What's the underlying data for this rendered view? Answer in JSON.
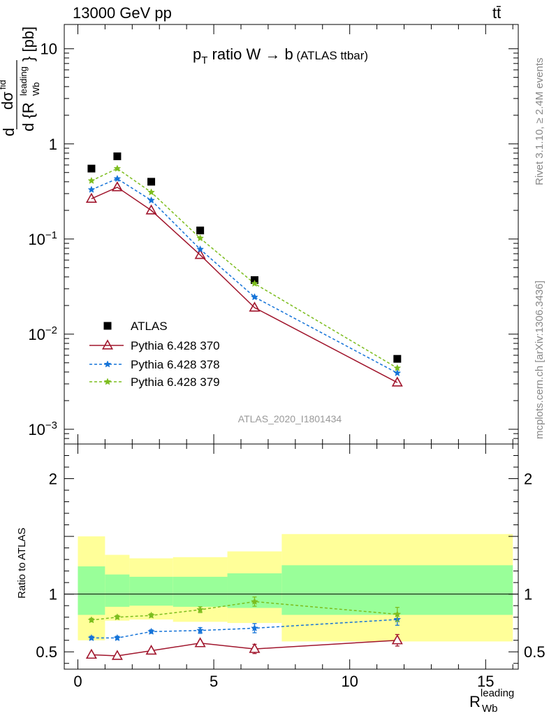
{
  "header": {
    "process": "13000 GeV pp",
    "final_state": "tt̄"
  },
  "side_labels": {
    "rivet": "Rivet 3.1.10, ≥ 2.4M events",
    "mcplots": "mcplots.cern.ch [arXiv:1306.3436]"
  },
  "colors": {
    "atlas": "#000000",
    "p370": "#a0152c",
    "p378": "#1473d8",
    "p379": "#7cbd1e",
    "band_inner": "#99ff99",
    "band_outer": "#ffff99"
  },
  "chart_data": [
    {
      "type": "line",
      "title": "p_T ratio W → b (ATLAS ttbar)",
      "title_parts": {
        "p": "p",
        "sub": "T",
        "rest": " ratio W",
        "arrow": "→",
        "b": " b",
        "paren": "(ATLAS ttbar)"
      },
      "ylabel": "d σ^fid / d {R_Wb^leading} [pb]",
      "ylabel_parts": {
        "d": "d",
        "sigma": "dσ",
        "fid": "fid",
        "den": "d {R",
        "leading": "leading",
        "wb": "Wb",
        "close": "} [pb]"
      },
      "yscale": "log",
      "ylim": [
        0.0007,
        18
      ],
      "xlim": [
        -0.5,
        16.2
      ],
      "yticks": [
        {
          "value": 10,
          "base": "10",
          "exp": ""
        },
        {
          "value": 1,
          "base": "1",
          "exp": ""
        },
        {
          "value": 0.1,
          "base": "10",
          "exp": "−1"
        },
        {
          "value": 0.01,
          "base": "10",
          "exp": "−2"
        },
        {
          "value": 0.001,
          "base": "10",
          "exp": "−3"
        }
      ],
      "watermark": "ATLAS_2020_I1801434",
      "legend_position": "bottom-left",
      "series": [
        {
          "name": "ATLAS",
          "marker": "square",
          "x": [
            0.5,
            1.45,
            2.7,
            4.5,
            6.5,
            11.75
          ],
          "y": [
            0.55,
            0.74,
            0.4,
            0.123,
            0.037,
            0.0055
          ]
        },
        {
          "name": "Pythia 6.428 370",
          "marker": "triangle",
          "line": "solid",
          "x": [
            0.5,
            1.45,
            2.7,
            4.5,
            6.5,
            11.75
          ],
          "y": [
            0.265,
            0.35,
            0.2,
            0.068,
            0.019,
            0.0031
          ]
        },
        {
          "name": "Pythia 6.428 378",
          "marker": "star",
          "line": "dashed",
          "x": [
            0.5,
            1.45,
            2.7,
            4.5,
            6.5,
            11.75
          ],
          "y": [
            0.33,
            0.43,
            0.255,
            0.078,
            0.0245,
            0.0039
          ]
        },
        {
          "name": "Pythia 6.428 379",
          "marker": "star",
          "line": "dashed",
          "x": [
            0.5,
            1.45,
            2.7,
            4.5,
            6.5,
            11.75
          ],
          "y": [
            0.41,
            0.55,
            0.31,
            0.102,
            0.034,
            0.0044
          ]
        }
      ]
    },
    {
      "type": "line",
      "ylabel": "Ratio to ATLAS",
      "xlabel": "R_Wb^leading",
      "xlabel_parts": {
        "r": "R",
        "leading": "leading",
        "wb": "Wb"
      },
      "xlim": [
        -0.5,
        16.2
      ],
      "ylim": [
        0.35,
        2.3
      ],
      "xticks": [
        0,
        5,
        10,
        15
      ],
      "yticks": [
        0.5,
        1,
        2
      ],
      "reference_line": 1,
      "bands": [
        {
          "xlo": 0.0,
          "xhi": 1.0,
          "inner": [
            0.82,
            1.24
          ],
          "outer": [
            0.6,
            1.5
          ]
        },
        {
          "xlo": 1.0,
          "xhi": 1.9,
          "inner": [
            0.89,
            1.17
          ],
          "outer": [
            0.77,
            1.34
          ]
        },
        {
          "xlo": 1.9,
          "xhi": 3.5,
          "inner": [
            0.9,
            1.15
          ],
          "outer": [
            0.78,
            1.31
          ]
        },
        {
          "xlo": 3.5,
          "xhi": 5.5,
          "inner": [
            0.89,
            1.15
          ],
          "outer": [
            0.76,
            1.32
          ]
        },
        {
          "xlo": 5.5,
          "xhi": 7.5,
          "inner": [
            0.88,
            1.18
          ],
          "outer": [
            0.75,
            1.37
          ]
        },
        {
          "xlo": 7.5,
          "xhi": 16.0,
          "inner": [
            0.82,
            1.25
          ],
          "outer": [
            0.59,
            1.52
          ]
        }
      ],
      "series": [
        {
          "name": "Pythia 6.428 370",
          "x": [
            0.5,
            1.45,
            2.7,
            4.5,
            6.5,
            11.75
          ],
          "y": [
            0.475,
            0.465,
            0.51,
            0.575,
            0.525,
            0.6
          ],
          "err": [
            0.015,
            0.015,
            0.015,
            0.02,
            0.04,
            0.05
          ]
        },
        {
          "name": "Pythia 6.428 378",
          "x": [
            0.5,
            1.45,
            2.7,
            4.5,
            6.5,
            11.75
          ],
          "y": [
            0.62,
            0.62,
            0.675,
            0.685,
            0.705,
            0.78
          ],
          "err": [
            0.015,
            0.015,
            0.015,
            0.025,
            0.04,
            0.05
          ]
        },
        {
          "name": "Pythia 6.428 379",
          "x": [
            0.5,
            1.45,
            2.7,
            4.5,
            6.5,
            11.75
          ],
          "y": [
            0.775,
            0.8,
            0.815,
            0.865,
            0.935,
            0.825
          ],
          "err": [
            0.015,
            0.015,
            0.015,
            0.025,
            0.04,
            0.06
          ]
        }
      ]
    }
  ]
}
